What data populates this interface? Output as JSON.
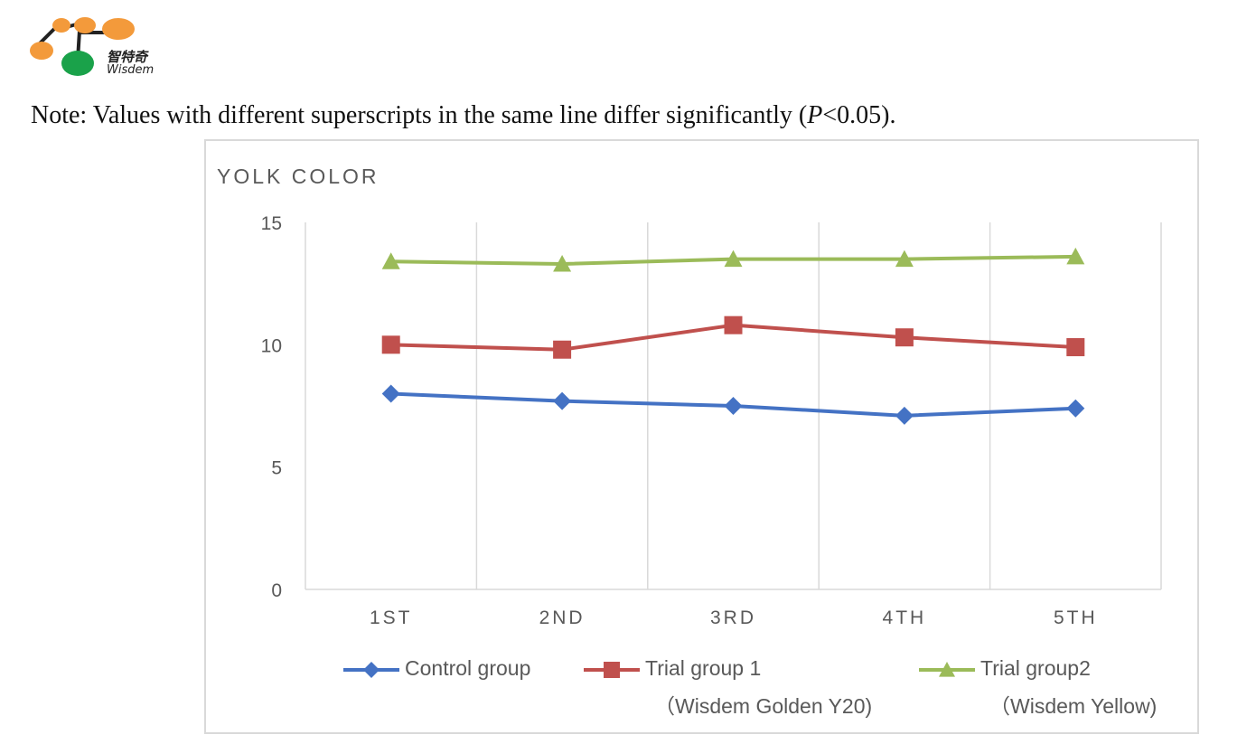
{
  "logo": {
    "text_cn": "智特奇",
    "text_en": "Wisdem"
  },
  "note": {
    "prefix": "Note: Values with different superscripts in the same line differ significantly (",
    "p_symbol": "P",
    "suffix": "<0.05)."
  },
  "chart_data": {
    "type": "line",
    "title": "YOLK COLOR",
    "xlabel": "",
    "ylabel": "",
    "categories": [
      "1ST",
      "2ND",
      "3RD",
      "4TH",
      "5TH"
    ],
    "ylim": [
      0,
      15
    ],
    "yticks": [
      "0",
      "5",
      "10",
      "15"
    ],
    "ytick_values": [
      0,
      5,
      10,
      15
    ],
    "grid": "vertical",
    "legend_position": "bottom",
    "series": [
      {
        "name": "Control group",
        "subtitle": "",
        "color": "#4472C4",
        "marker": "diamond",
        "values": [
          8.0,
          7.7,
          7.5,
          7.1,
          7.4
        ]
      },
      {
        "name": "Trial group 1",
        "subtitle": "（Wisdem Golden Y20)",
        "color": "#C0504D",
        "marker": "square",
        "values": [
          10.0,
          9.8,
          10.8,
          10.3,
          9.9
        ]
      },
      {
        "name": "Trial group2",
        "subtitle": "（Wisdem Yellow)",
        "color": "#9BBB59",
        "marker": "triangle",
        "values": [
          13.4,
          13.3,
          13.5,
          13.5,
          13.6
        ]
      }
    ]
  }
}
